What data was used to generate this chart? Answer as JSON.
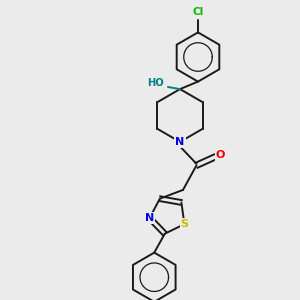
{
  "background_color": "#ebebeb",
  "bond_color": "#1a1a1a",
  "atom_colors": {
    "Cl": "#00bb00",
    "N": "#0000ee",
    "O": "#ee0000",
    "HO": "#008080",
    "S": "#ccbb00"
  },
  "figsize": [
    3.0,
    3.0
  ],
  "dpi": 100
}
